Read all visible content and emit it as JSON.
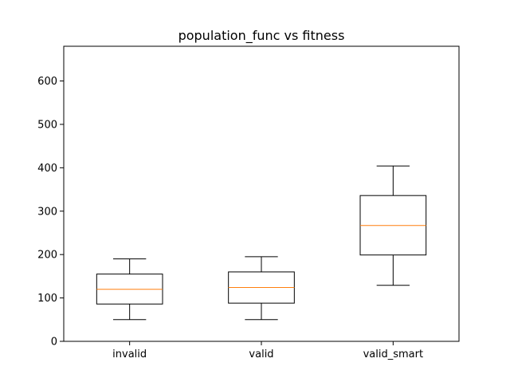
{
  "chart_data": {
    "type": "box",
    "title": "population_func vs fitness",
    "xlabel": "",
    "ylabel": "",
    "categories": [
      "invalid",
      "valid",
      "valid_smart"
    ],
    "ylim": [
      0,
      680
    ],
    "yticks": [
      0,
      100,
      200,
      300,
      400,
      500,
      600
    ],
    "grid": false,
    "boxes": [
      {
        "category": "invalid",
        "whisker_low": 50,
        "q1": 86,
        "median": 120,
        "q3": 155,
        "whisker_high": 190
      },
      {
        "category": "valid",
        "whisker_low": 50,
        "q1": 88,
        "median": 124,
        "q3": 160,
        "whisker_high": 195
      },
      {
        "category": "valid_smart",
        "whisker_low": 129,
        "q1": 199,
        "median": 267,
        "q3": 336,
        "whisker_high": 404
      }
    ],
    "colors": {
      "box": "#000000",
      "median": "#ff7f0e"
    }
  }
}
